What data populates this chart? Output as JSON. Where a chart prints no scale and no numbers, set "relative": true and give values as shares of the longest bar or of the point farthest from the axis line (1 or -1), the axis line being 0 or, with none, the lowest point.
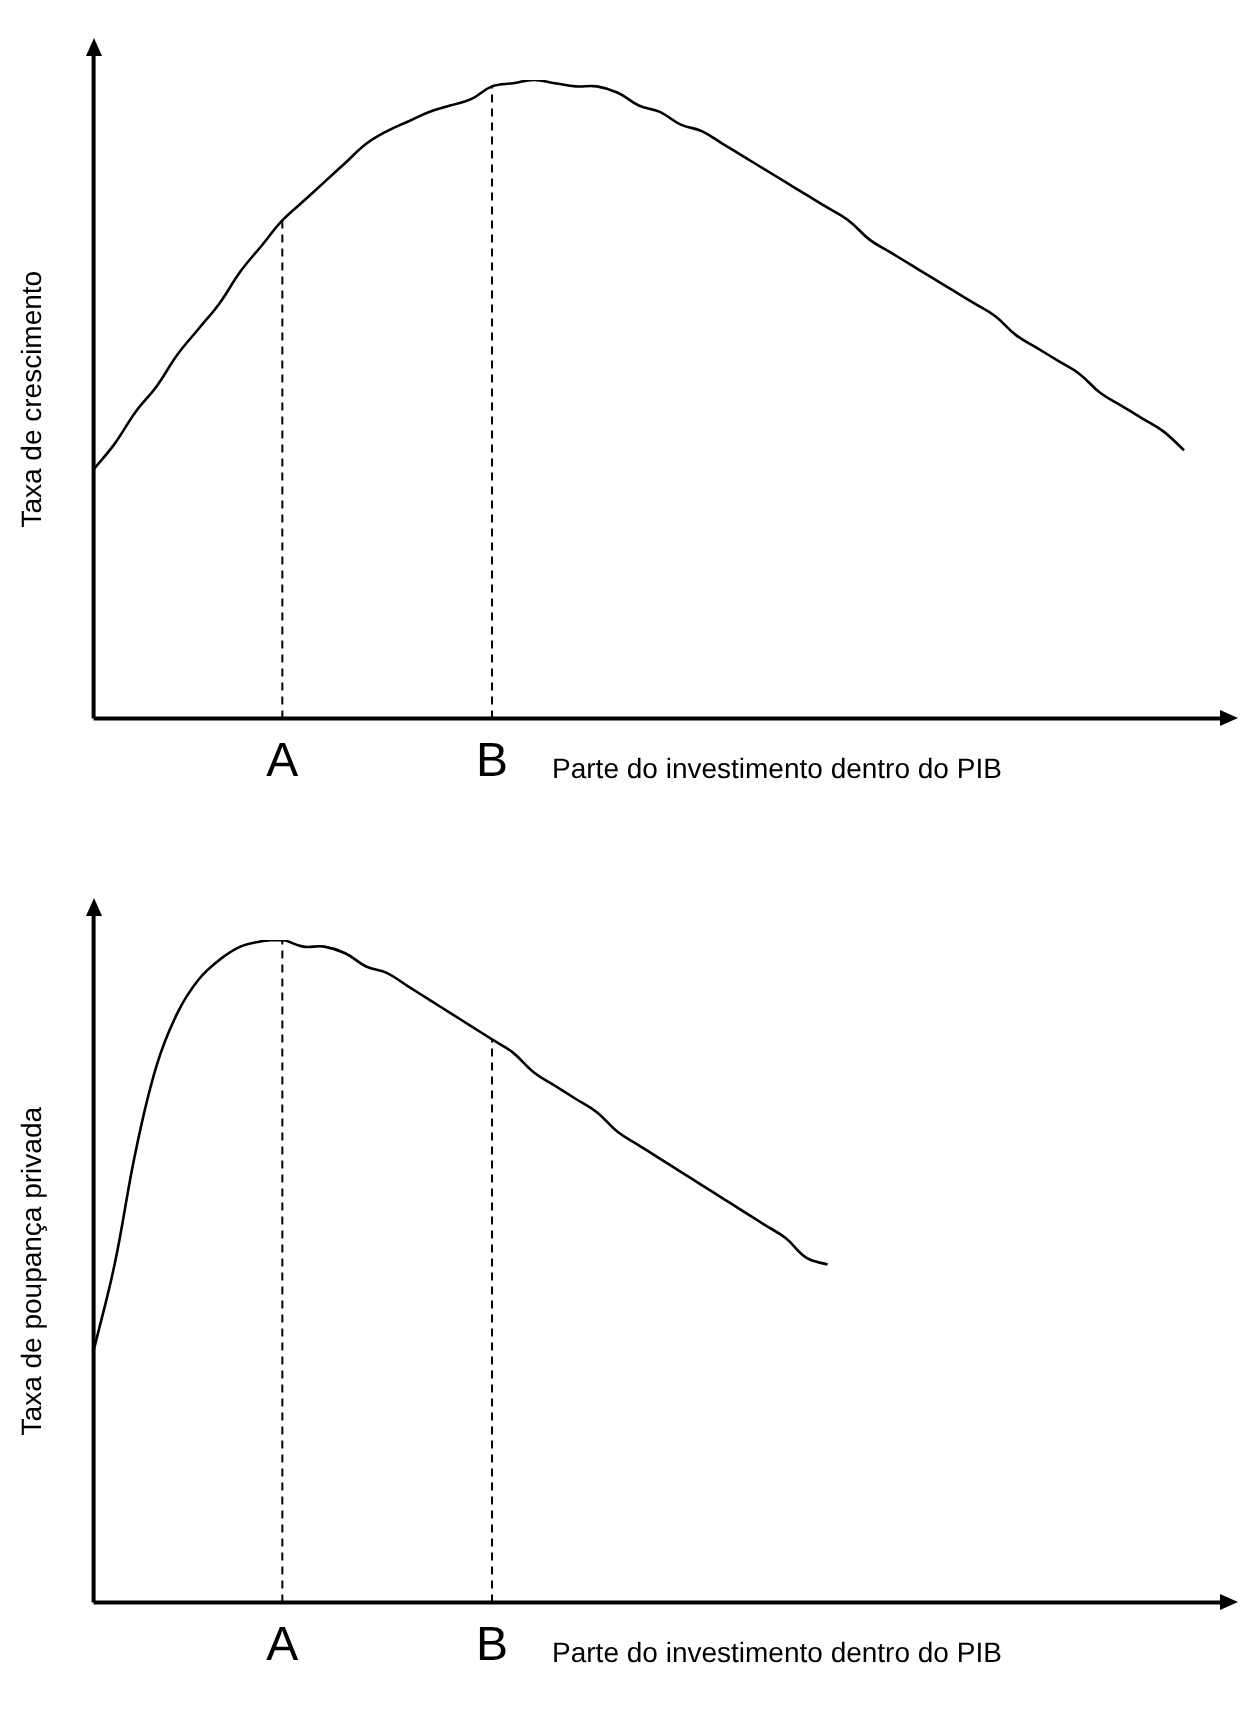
{
  "chart_data": [
    {
      "type": "line",
      "relative": true,
      "ylabel": "Taxa de crescimento",
      "xlabel": "Parte do investimento dentro do PIB",
      "categories": [
        null,
        null,
        null,
        null,
        null,
        null,
        null,
        null,
        null,
        "A",
        null,
        null,
        null,
        null,
        null,
        null,
        null,
        null,
        null,
        "B",
        null,
        null,
        null,
        null,
        null,
        null,
        null,
        null,
        null,
        null,
        null,
        null,
        null,
        null,
        null,
        null,
        null,
        null,
        null,
        null,
        null,
        null,
        null,
        null,
        null,
        null,
        null,
        null,
        null,
        null,
        null,
        null,
        null,
        null,
        null
      ],
      "series": [
        {
          "color": "#000000",
          "values": [
            0.39,
            0.43,
            0.48,
            0.52,
            0.57,
            0.61,
            0.65,
            0.7,
            0.74,
            0.78,
            0.81,
            0.84,
            0.87,
            0.9,
            0.92,
            0.935,
            0.95,
            0.96,
            0.97,
            0.99,
            0.995,
            1,
            0.995,
            0.99,
            0.99,
            0.98,
            0.96,
            0.95,
            0.93,
            0.92,
            0.9,
            0.88,
            0.86,
            0.84,
            0.82,
            0.8,
            0.78,
            0.75,
            0.73,
            0.71,
            0.69,
            0.67,
            0.65,
            0.63,
            0.6,
            0.58,
            0.56,
            0.54,
            0.51,
            0.49,
            0.47,
            0.45,
            0.42,
            null,
            null
          ]
        }
      ],
      "ref_lines": [
        {
          "axis": "x",
          "value": "A",
          "color": "#000000",
          "line_style": "dashed"
        },
        {
          "axis": "x",
          "value": "B",
          "color": "#000000",
          "line_style": "dashed"
        }
      ],
      "grid": false,
      "legend": false,
      "tick_labels": "x",
      "marker": "none",
      "line_style": "solid"
    },
    {
      "type": "line",
      "relative": true,
      "ylabel": "Taxa de poupança privada",
      "xlabel": "Parte do investimento dentro do PIB",
      "categories": [
        null,
        null,
        null,
        null,
        null,
        null,
        null,
        null,
        null,
        "A",
        null,
        null,
        null,
        null,
        null,
        null,
        null,
        null,
        null,
        "B",
        null,
        null,
        null,
        null,
        null,
        null,
        null,
        null,
        null,
        null,
        null,
        null,
        null,
        null,
        null,
        null,
        null,
        null,
        null,
        null,
        null,
        null,
        null,
        null,
        null,
        null,
        null,
        null,
        null,
        null,
        null,
        null,
        null,
        null,
        null
      ],
      "series": [
        {
          "color": "#000000",
          "values": [
            0.38,
            0.51,
            0.68,
            0.81,
            0.89,
            0.94,
            0.97,
            0.99,
            0.998,
            1,
            0.99,
            0.99,
            0.98,
            0.96,
            0.95,
            0.93,
            0.91,
            0.89,
            0.87,
            0.85,
            0.83,
            0.8,
            0.78,
            0.76,
            0.74,
            0.71,
            0.69,
            0.67,
            0.65,
            0.63,
            0.61,
            0.59,
            0.57,
            0.55,
            0.52,
            0.51,
            null,
            null,
            null,
            null,
            null,
            null,
            null,
            null,
            null,
            null,
            null,
            null,
            null,
            null,
            null,
            null,
            null,
            null,
            null
          ]
        }
      ],
      "ref_lines": [
        {
          "axis": "x",
          "value": "A",
          "color": "#000000",
          "line_style": "dashed"
        },
        {
          "axis": "x",
          "value": "B",
          "color": "#000000",
          "line_style": "dashed"
        }
      ],
      "grid": false,
      "legend": false,
      "tick_labels": "x",
      "marker": "none",
      "line_style": "solid"
    }
  ]
}
